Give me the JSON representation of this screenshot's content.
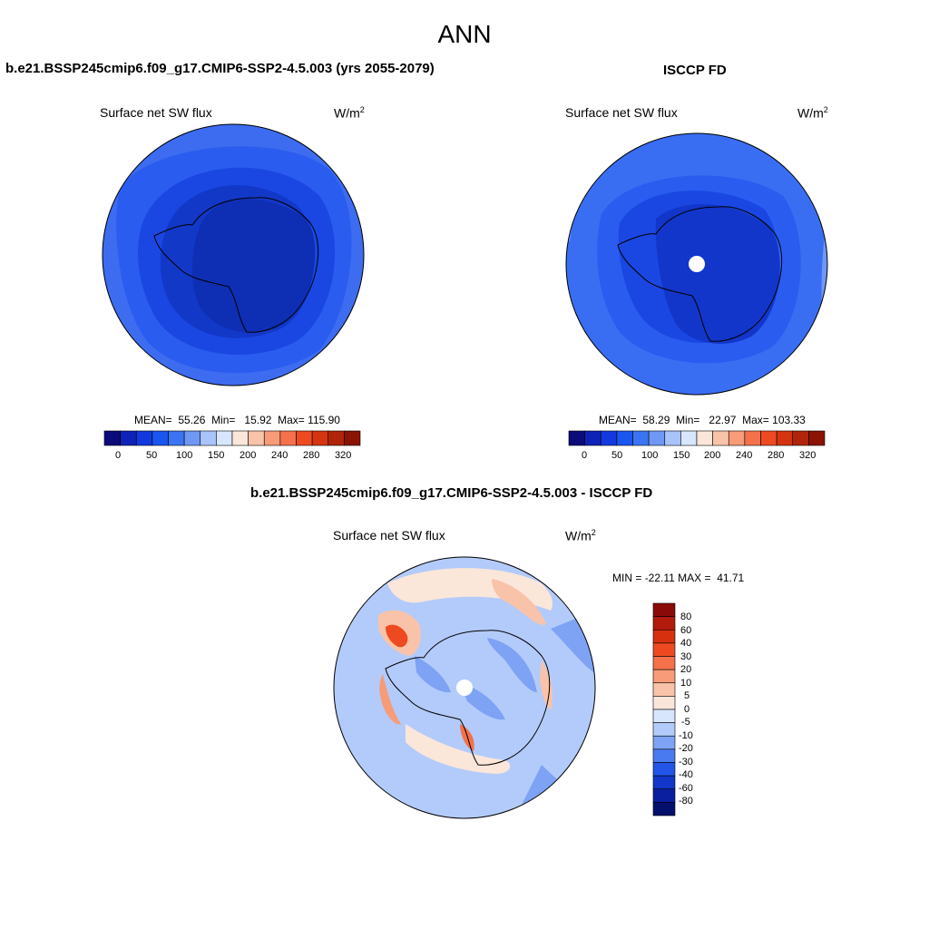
{
  "page": {
    "title": "ANN"
  },
  "panels": {
    "model": {
      "title": "b.e21.BSSP245cmip6.f09_g17.CMIP6-SSP2-4.5.003 (yrs 2055-2079)",
      "variable": "Surface net SW flux",
      "units_base": "W/m",
      "units_exp": "2",
      "stats": {
        "mean_label": "MEAN=",
        "mean": "55.26",
        "min_label": "Min=",
        "min": "15.92",
        "max_label": "Max=",
        "max": "115.90"
      }
    },
    "obs": {
      "title": "ISCCP FD",
      "variable": "Surface net SW flux",
      "units_base": "W/m",
      "units_exp": "2",
      "stats": {
        "mean_label": "MEAN=",
        "mean": "58.29",
        "min_label": "Min=",
        "min": "22.97",
        "max_label": "Max=",
        "max": "103.33"
      }
    },
    "diff": {
      "title": "b.e21.BSSP245cmip6.f09_g17.CMIP6-SSP2-4.5.003 - ISCCP FD",
      "variable": "Surface net SW flux",
      "units_base": "W/m",
      "units_exp": "2",
      "stats": {
        "min_label": "MIN =",
        "min": "-22.11",
        "max_label": "MAX =",
        "max": "41.71"
      }
    }
  },
  "colorbars": {
    "abs": {
      "labels": [
        "0",
        "50",
        "100",
        "150",
        "200",
        "240",
        "280",
        "320"
      ],
      "colors": [
        "#0b0b7a",
        "#0f22b8",
        "#1339de",
        "#1a55ee",
        "#3a74f2",
        "#6f98f5",
        "#a8c4fa",
        "#d7e6fd",
        "#fbe6da",
        "#f9c3a9",
        "#f79b79",
        "#f4714b",
        "#ee4a22",
        "#d4340f",
        "#b0250a",
        "#8a1305"
      ]
    },
    "diff": {
      "labels": [
        "80",
        "60",
        "40",
        "30",
        "20",
        "10",
        "5",
        "0",
        "-5",
        "-10",
        "-20",
        "-30",
        "-40",
        "-60",
        "-80"
      ],
      "colors": [
        "#8a0a0a",
        "#b31b0c",
        "#d7300f",
        "#ee4a22",
        "#f4714b",
        "#f79b79",
        "#f9c3a9",
        "#fbe6da",
        "#d7e6fd",
        "#b3cbfa",
        "#7ea2f4",
        "#4a7aef",
        "#2255e8",
        "#1236c9",
        "#0a1fa0",
        "#05106c"
      ]
    }
  }
}
